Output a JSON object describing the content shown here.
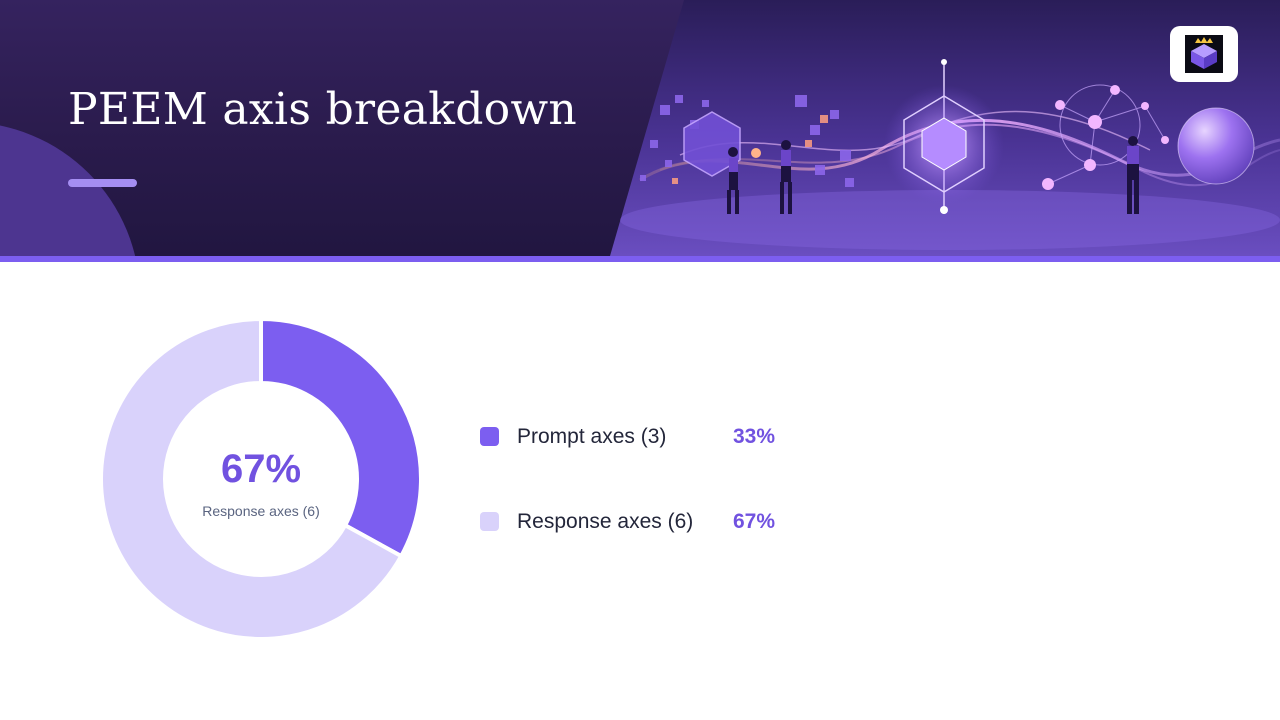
{
  "slide": {
    "title": "PEEM axis breakdown"
  },
  "colors": {
    "accent": "#7c5ef0",
    "accent_light": "#d9d2fb",
    "header_bg": "#2a1b4c",
    "value_text": "#7152e0"
  },
  "logo": {
    "icon": "crowned-cube-logo-icon"
  },
  "chart_data": {
    "type": "pie",
    "subtype": "donut",
    "categories": [
      "Prompt axes (3)",
      "Response axes (6)"
    ],
    "values": [
      33,
      67
    ],
    "value_labels": [
      "33%",
      "67%"
    ],
    "colors": [
      "#7c5ef0",
      "#d9d2fb"
    ],
    "center": {
      "value": "67%",
      "label": "Response axes (6)"
    },
    "legend_position": "right"
  }
}
